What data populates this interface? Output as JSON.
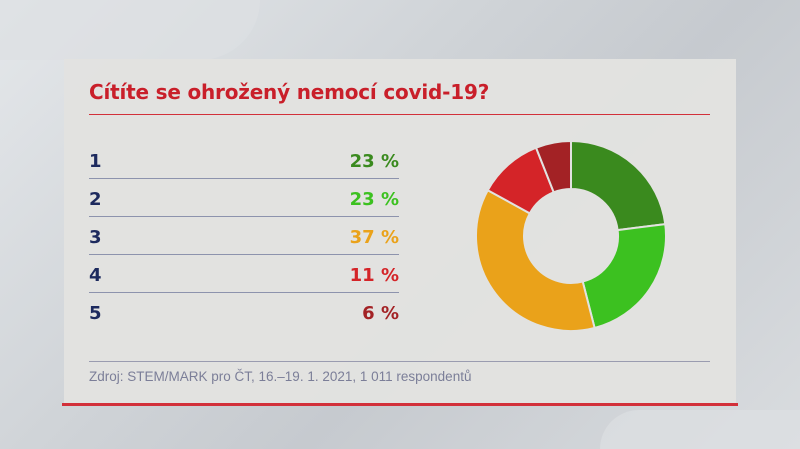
{
  "title": "Cítíte se ohrožený nemocí covid-19?",
  "rows": [
    {
      "label": "1",
      "value": "23 %",
      "color": "#3a8a1e"
    },
    {
      "label": "2",
      "value": "23 %",
      "color": "#3cc120"
    },
    {
      "label": "3",
      "value": "37 %",
      "color": "#eaa21a"
    },
    {
      "label": "4",
      "value": "11 %",
      "color": "#d42428"
    },
    {
      "label": "5",
      "value": "6 %",
      "color": "#a32225"
    }
  ],
  "source": "Zdroj: STEM/MARK pro ČT, 16.–19. 1. 2021, 1 011 respondentů",
  "colors": {
    "accent": "#c91f2a",
    "label": "#1d2a5e",
    "source": "#7b7e98"
  },
  "chart_data": {
    "type": "pie",
    "subtype": "donut",
    "title": "Cítíte se ohrožený nemocí covid-19?",
    "categories": [
      "1",
      "2",
      "3",
      "4",
      "5"
    ],
    "values": [
      23,
      23,
      37,
      11,
      6
    ],
    "unit": "%",
    "colors": [
      "#3a8a1e",
      "#3cc120",
      "#eaa21a",
      "#d42428",
      "#a32225"
    ],
    "start_angle": "12 o'clock, clockwise",
    "legend": "left, as table with values",
    "source": "Zdroj: STEM/MARK pro ČT, 16.–19. 1. 2021, 1 011 respondentů"
  }
}
